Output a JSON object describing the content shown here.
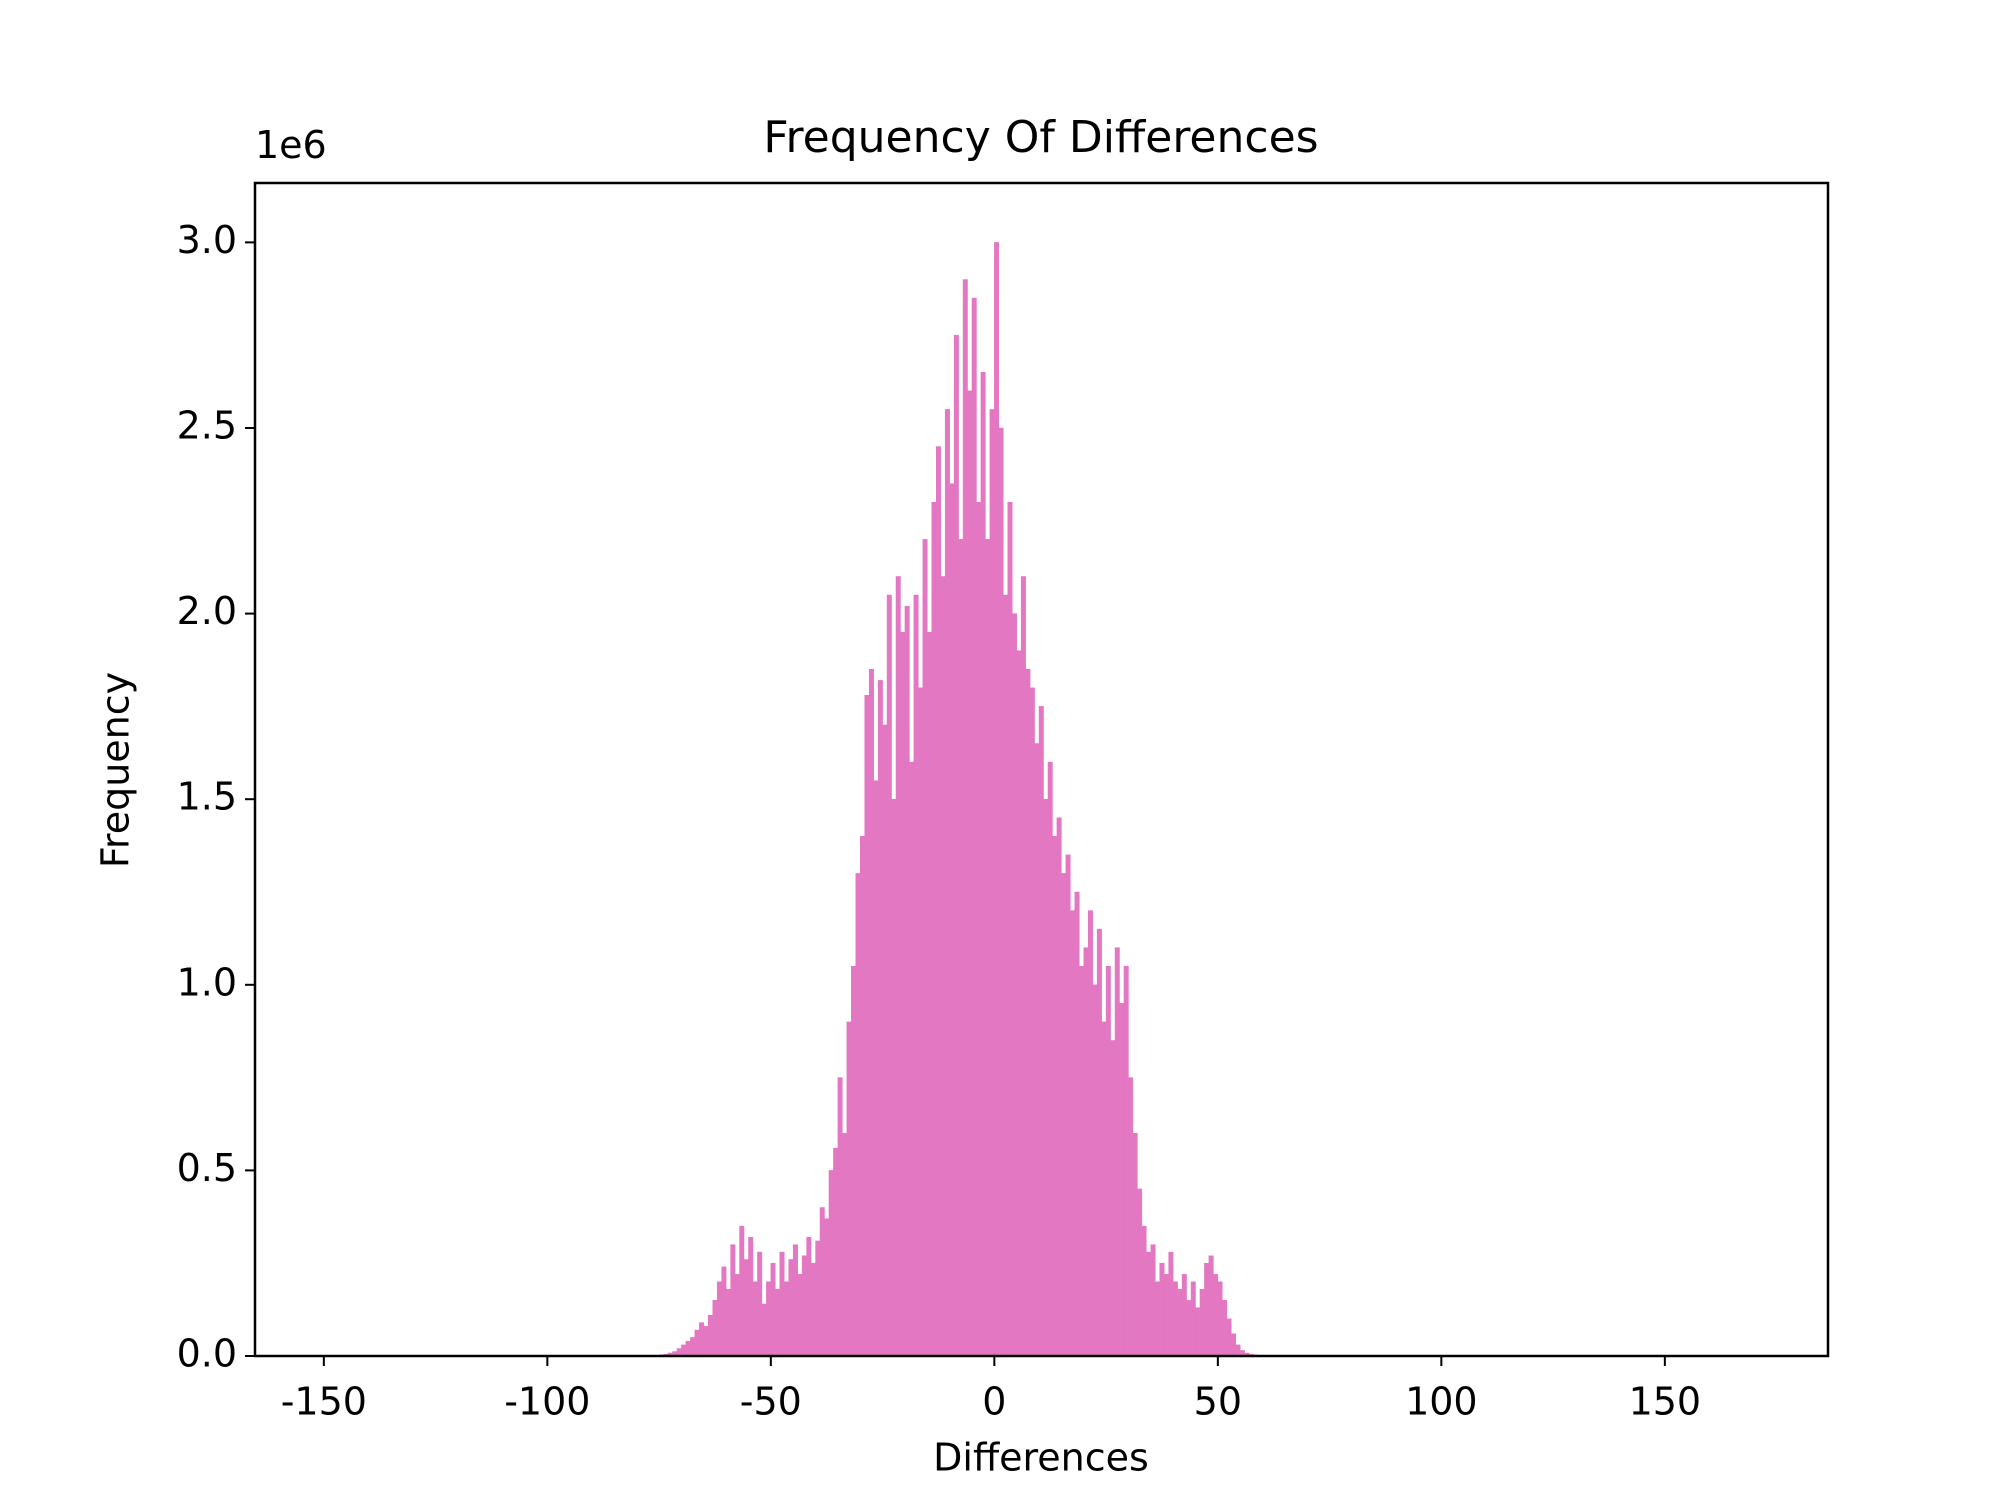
{
  "chart_data": {
    "type": "histogram",
    "title": "Frequency Of Differences",
    "x_label": "Differences",
    "y_label": "Frequency",
    "y_offset_label": "1e6",
    "color": "#e377c2",
    "bins": [
      -76,
      -75,
      -74,
      -73,
      -72,
      -71,
      -70,
      -69,
      -68,
      -67,
      -66,
      -65,
      -64,
      -63,
      -62,
      -61,
      -60,
      -59,
      -58,
      -57,
      -56,
      -55,
      -54,
      -53,
      -52,
      -51,
      -50,
      -49,
      -48,
      -47,
      -46,
      -45,
      -44,
      -43,
      -42,
      -41,
      -40,
      -39,
      -38,
      -37,
      -36,
      -35,
      -34,
      -33,
      -32,
      -31,
      -30,
      -29,
      -28,
      -27,
      -26,
      -25,
      -24,
      -23,
      -22,
      -21,
      -20,
      -19,
      -18,
      -17,
      -16,
      -15,
      -14,
      -13,
      -12,
      -11,
      -10,
      -9,
      -8,
      -7,
      -6,
      -5,
      -4,
      -3,
      -2,
      -1,
      0,
      1,
      2,
      3,
      4,
      5,
      6,
      7,
      8,
      9,
      10,
      11,
      12,
      13,
      14,
      15,
      16,
      17,
      18,
      19,
      20,
      21,
      22,
      23,
      24,
      25,
      26,
      27,
      28,
      29,
      30,
      31,
      32,
      33,
      34,
      35,
      36,
      37,
      38,
      39,
      40,
      41,
      42,
      43,
      44,
      45,
      46,
      47,
      48,
      49,
      50,
      51,
      52,
      53,
      54,
      55,
      56,
      57,
      58,
      59,
      60,
      61,
      62,
      63
    ],
    "counts": [
      0.002,
      0.003,
      0.005,
      0.008,
      0.012,
      0.02,
      0.03,
      0.04,
      0.05,
      0.07,
      0.09,
      0.08,
      0.11,
      0.15,
      0.2,
      0.24,
      0.18,
      0.3,
      0.22,
      0.35,
      0.26,
      0.32,
      0.2,
      0.28,
      0.14,
      0.2,
      0.25,
      0.18,
      0.28,
      0.2,
      0.26,
      0.3,
      0.22,
      0.27,
      0.32,
      0.25,
      0.31,
      0.4,
      0.37,
      0.5,
      0.56,
      0.75,
      0.6,
      0.9,
      1.05,
      1.3,
      1.4,
      1.78,
      1.85,
      1.55,
      1.82,
      1.7,
      2.05,
      1.5,
      2.1,
      1.95,
      2.02,
      1.6,
      2.05,
      1.8,
      2.2,
      1.95,
      2.3,
      2.45,
      2.1,
      2.55,
      2.35,
      2.75,
      2.2,
      2.9,
      2.6,
      2.85,
      2.3,
      2.65,
      2.2,
      2.55,
      3.0,
      2.5,
      2.05,
      2.3,
      2.0,
      1.9,
      2.1,
      1.85,
      1.8,
      1.65,
      1.75,
      1.5,
      1.6,
      1.4,
      1.45,
      1.3,
      1.35,
      1.2,
      1.25,
      1.05,
      1.1,
      1.2,
      1.0,
      1.15,
      0.9,
      1.05,
      0.85,
      1.1,
      0.95,
      1.05,
      0.75,
      0.6,
      0.45,
      0.35,
      0.28,
      0.3,
      0.2,
      0.25,
      0.22,
      0.28,
      0.2,
      0.18,
      0.22,
      0.15,
      0.2,
      0.13,
      0.18,
      0.25,
      0.27,
      0.22,
      0.2,
      0.15,
      0.1,
      0.06,
      0.03,
      0.015,
      0.008,
      0.005,
      0.003,
      0.002,
      0.001,
      0.001,
      0.0005
    ],
    "xlim": [
      -165.4,
      186.5
    ],
    "ylim": [
      0,
      3.16
    ],
    "xticks": [
      -150,
      -100,
      -50,
      0,
      50,
      100,
      150
    ],
    "yticks": [
      {
        "value": 0,
        "label": "0.0"
      },
      {
        "value": 0.5,
        "label": "0.5"
      },
      {
        "value": 1,
        "label": "1.0"
      },
      {
        "value": 1.5,
        "label": "1.5"
      },
      {
        "value": 2,
        "label": "2.0"
      },
      {
        "value": 2.5,
        "label": "2.5"
      },
      {
        "value": 3,
        "label": "3.0"
      }
    ]
  }
}
